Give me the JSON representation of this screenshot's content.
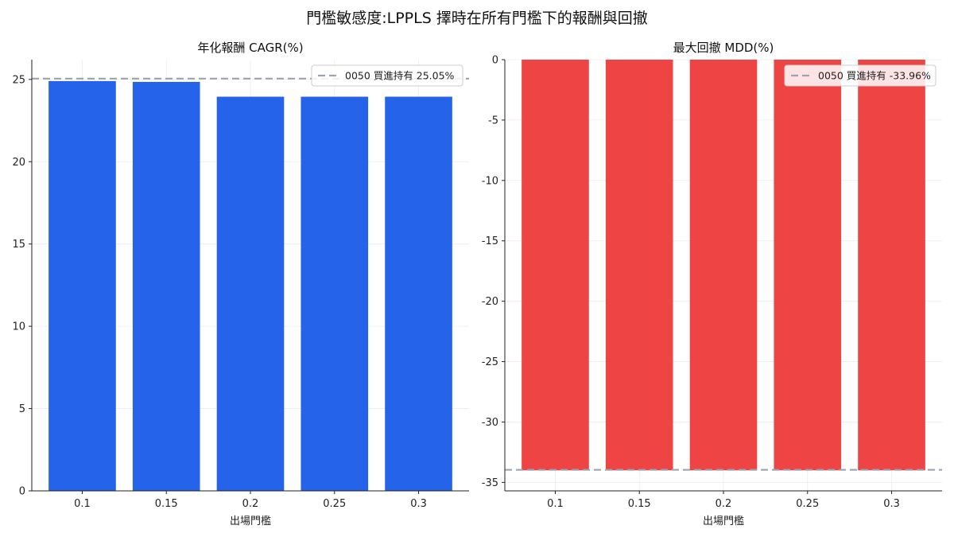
{
  "figure": {
    "title": "門檻敏感度:LPPLS 擇時在所有門檻下的報酬與回撤"
  },
  "chart_data": [
    {
      "type": "bar",
      "title": "年化報酬 CAGR(%)",
      "xlabel": "出場門檻",
      "ylabel": "",
      "categories": [
        "0.1",
        "0.15",
        "0.2",
        "0.25",
        "0.3"
      ],
      "values": [
        24.9,
        24.85,
        23.95,
        23.95,
        23.95
      ],
      "ylim": [
        0,
        26.2
      ],
      "yticks": [
        0,
        5,
        10,
        15,
        20,
        25
      ],
      "bar_color": "#2563eb",
      "reference_line": {
        "value": 25.05,
        "label": "0050 買進持有 25.05%",
        "color": "#9ca3af",
        "style": "dashed"
      },
      "legend": "top-right",
      "grid": true
    },
    {
      "type": "bar",
      "title": "最大回撤 MDD(%)",
      "xlabel": "出場門檻",
      "ylabel": "",
      "categories": [
        "0.1",
        "0.15",
        "0.2",
        "0.25",
        "0.3"
      ],
      "values": [
        -34.0,
        -34.0,
        -34.0,
        -34.0,
        -34.0
      ],
      "ylim": [
        -35.7,
        0
      ],
      "yticks": [
        0,
        -5,
        -10,
        -15,
        -20,
        -25,
        -30,
        -35
      ],
      "bar_color": "#ef4444",
      "reference_line": {
        "value": -33.96,
        "label": "0050 買進持有 -33.96%",
        "color": "#9ca3af",
        "style": "dashed"
      },
      "legend": "top-right",
      "grid": true
    }
  ]
}
